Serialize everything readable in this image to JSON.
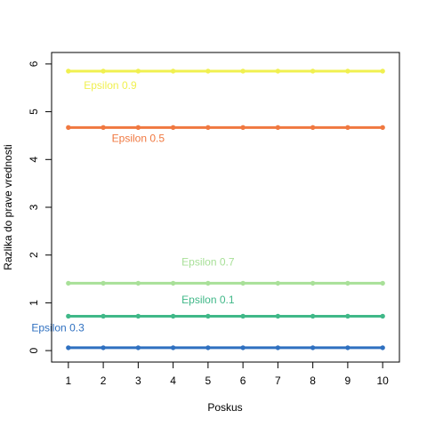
{
  "chart_data": {
    "type": "line",
    "xlabel": "Poskus",
    "ylabel": "Razlika do prave vrednosti",
    "x": [
      1,
      2,
      3,
      4,
      5,
      6,
      7,
      8,
      9,
      10
    ],
    "xticks": [
      "1",
      "2",
      "3",
      "4",
      "5",
      "6",
      "7",
      "8",
      "9",
      "10"
    ],
    "yticks": [
      "0",
      "1",
      "2",
      "3",
      "4",
      "5",
      "6"
    ],
    "xlim": [
      0.52,
      10.48
    ],
    "ylim": [
      -0.24,
      6.24
    ],
    "grid": false,
    "legend": "inline labels",
    "series": [
      {
        "name": "Epsilon 0.9",
        "color": "#f0f050",
        "values": [
          5.85,
          5.85,
          5.85,
          5.85,
          5.85,
          5.85,
          5.85,
          5.85,
          5.85,
          5.85
        ],
        "label_x": 2.2,
        "label_y": 5.48
      },
      {
        "name": "Epsilon 0.5",
        "color": "#f07840",
        "values": [
          4.67,
          4.67,
          4.67,
          4.67,
          4.67,
          4.67,
          4.67,
          4.67,
          4.67,
          4.67
        ],
        "label_x": 3.0,
        "label_y": 4.37
      },
      {
        "name": "Epsilon 0.7",
        "color": "#a8e098",
        "values": [
          1.41,
          1.41,
          1.41,
          1.41,
          1.41,
          1.41,
          1.41,
          1.41,
          1.41,
          1.41
        ],
        "label_x": 5.0,
        "label_y": 1.78
      },
      {
        "name": "Epsilon 0.1",
        "color": "#40b888",
        "values": [
          0.72,
          0.72,
          0.72,
          0.72,
          0.72,
          0.72,
          0.72,
          0.72,
          0.72,
          0.72
        ],
        "label_x": 5.0,
        "label_y": 0.99
      },
      {
        "name": "Epsilon 0.3",
        "color": "#2f70c0",
        "values": [
          0.06,
          0.06,
          0.06,
          0.06,
          0.06,
          0.06,
          0.06,
          0.06,
          0.06,
          0.06
        ],
        "label_x": 0.7,
        "label_y": 0.4
      }
    ]
  }
}
